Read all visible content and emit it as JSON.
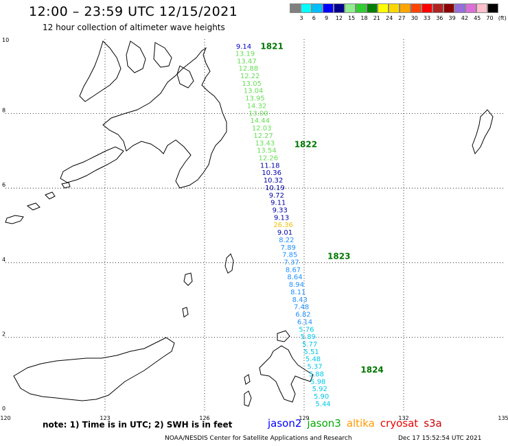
{
  "header": {
    "title": "12:00 – 23:59 UTC 12/15/2021",
    "subtitle": "12 hour collection of altimeter wave heights"
  },
  "colorbar": {
    "colors": [
      "#808080",
      "#00ffff",
      "#00bfff",
      "#0000ff",
      "#00008b",
      "#90ee90",
      "#32cd32",
      "#008000",
      "#ffff00",
      "#ffd700",
      "#ffa500",
      "#ff4500",
      "#ff0000",
      "#b22222",
      "#8b0000",
      "#9370db",
      "#da70d6",
      "#ffc0cb",
      "#000000"
    ],
    "labels": [
      "3",
      "6",
      "9",
      "12",
      "15",
      "18",
      "21",
      "24",
      "27",
      "30",
      "33",
      "36",
      "39",
      "42",
      "45",
      "70",
      "(ft)"
    ]
  },
  "chart_data": {
    "type": "scatter",
    "xlim": [
      120,
      135
    ],
    "ylim": [
      0,
      10
    ],
    "x_ticks": [
      120,
      123,
      126,
      129,
      132,
      135
    ],
    "y_ticks": [
      0,
      2,
      4,
      6,
      8,
      10
    ],
    "grid": true,
    "points": [
      {
        "lon": 127.18,
        "lat": 9.74,
        "value": "9.14",
        "color": "#0000cc"
      },
      {
        "lon": 127.22,
        "lat": 9.55,
        "value": "13.19",
        "color": "#66dd55"
      },
      {
        "lon": 127.27,
        "lat": 9.35,
        "value": "13.47",
        "color": "#66dd55"
      },
      {
        "lon": 127.32,
        "lat": 9.15,
        "value": "12.88",
        "color": "#66dd55"
      },
      {
        "lon": 127.37,
        "lat": 8.95,
        "value": "12.22",
        "color": "#66dd55"
      },
      {
        "lon": 127.42,
        "lat": 8.75,
        "value": "13.05",
        "color": "#66dd55"
      },
      {
        "lon": 127.47,
        "lat": 8.55,
        "value": "13.04",
        "color": "#66dd55"
      },
      {
        "lon": 127.52,
        "lat": 8.35,
        "value": "13.95",
        "color": "#66dd55"
      },
      {
        "lon": 127.57,
        "lat": 8.15,
        "value": "14.32",
        "color": "#66dd55"
      },
      {
        "lon": 127.62,
        "lat": 7.95,
        "value": "13.00",
        "color": "#66dd55"
      },
      {
        "lon": 127.67,
        "lat": 7.75,
        "value": "14.44",
        "color": "#66dd55"
      },
      {
        "lon": 127.72,
        "lat": 7.55,
        "value": "12.03",
        "color": "#66dd55"
      },
      {
        "lon": 127.77,
        "lat": 7.35,
        "value": "12.27",
        "color": "#66dd55"
      },
      {
        "lon": 127.82,
        "lat": 7.15,
        "value": "13.43",
        "color": "#66dd55"
      },
      {
        "lon": 127.87,
        "lat": 6.95,
        "value": "13.54",
        "color": "#66dd55"
      },
      {
        "lon": 127.92,
        "lat": 6.75,
        "value": "12.26",
        "color": "#66dd55"
      },
      {
        "lon": 127.97,
        "lat": 6.55,
        "value": "11.18",
        "color": "#0000aa"
      },
      {
        "lon": 128.02,
        "lat": 6.35,
        "value": "10.36",
        "color": "#0000aa"
      },
      {
        "lon": 128.07,
        "lat": 6.15,
        "value": "10.32",
        "color": "#0000aa"
      },
      {
        "lon": 128.12,
        "lat": 5.95,
        "value": "10.19",
        "color": "#0000aa"
      },
      {
        "lon": 128.17,
        "lat": 5.75,
        "value": "9.72",
        "color": "#0000aa"
      },
      {
        "lon": 128.22,
        "lat": 5.55,
        "value": "9.11",
        "color": "#0000aa"
      },
      {
        "lon": 128.27,
        "lat": 5.35,
        "value": "9.33",
        "color": "#0000aa"
      },
      {
        "lon": 128.32,
        "lat": 5.15,
        "value": "9.13",
        "color": "#0000aa"
      },
      {
        "lon": 128.37,
        "lat": 4.95,
        "value": "26.36",
        "color": "#f0c000"
      },
      {
        "lon": 128.42,
        "lat": 4.75,
        "value": "9.01",
        "color": "#0000aa"
      },
      {
        "lon": 128.47,
        "lat": 4.55,
        "value": "8.22",
        "color": "#1e90ff"
      },
      {
        "lon": 128.52,
        "lat": 4.35,
        "value": "7.89",
        "color": "#1e90ff"
      },
      {
        "lon": 128.57,
        "lat": 4.15,
        "value": "7.85",
        "color": "#1e90ff"
      },
      {
        "lon": 128.62,
        "lat": 3.95,
        "value": "7.37",
        "color": "#1e90ff"
      },
      {
        "lon": 128.67,
        "lat": 3.75,
        "value": "8.67",
        "color": "#1e90ff"
      },
      {
        "lon": 128.72,
        "lat": 3.55,
        "value": "8.64",
        "color": "#1e90ff"
      },
      {
        "lon": 128.77,
        "lat": 3.35,
        "value": "8.94",
        "color": "#1e90ff"
      },
      {
        "lon": 128.82,
        "lat": 3.15,
        "value": "8.11",
        "color": "#1e90ff"
      },
      {
        "lon": 128.87,
        "lat": 2.95,
        "value": "8.43",
        "color": "#1e90ff"
      },
      {
        "lon": 128.92,
        "lat": 2.75,
        "value": "7.48",
        "color": "#1e90ff"
      },
      {
        "lon": 128.97,
        "lat": 2.55,
        "value": "6.82",
        "color": "#1e90ff"
      },
      {
        "lon": 129.02,
        "lat": 2.35,
        "value": "6.14",
        "color": "#1e90ff"
      },
      {
        "lon": 129.07,
        "lat": 2.15,
        "value": "5.76",
        "color": "#00c8e8"
      },
      {
        "lon": 129.12,
        "lat": 1.95,
        "value": "5.89",
        "color": "#00c8e8"
      },
      {
        "lon": 129.17,
        "lat": 1.75,
        "value": "5.77",
        "color": "#00c8e8"
      },
      {
        "lon": 129.22,
        "lat": 1.55,
        "value": "5.51",
        "color": "#00c8e8"
      },
      {
        "lon": 129.27,
        "lat": 1.35,
        "value": "5.48",
        "color": "#00c8e8"
      },
      {
        "lon": 129.32,
        "lat": 1.15,
        "value": "5.37",
        "color": "#00c8e8"
      },
      {
        "lon": 129.37,
        "lat": 0.95,
        "value": "5.88",
        "color": "#00c8e8"
      },
      {
        "lon": 129.42,
        "lat": 0.75,
        "value": "5.98",
        "color": "#00c8e8"
      },
      {
        "lon": 129.47,
        "lat": 0.55,
        "value": "5.92",
        "color": "#00c8e8"
      },
      {
        "lon": 129.52,
        "lat": 0.35,
        "value": "5.90",
        "color": "#00c8e8"
      },
      {
        "lon": 129.57,
        "lat": 0.15,
        "value": "5.44",
        "color": "#00c8e8"
      }
    ],
    "pass_labels": [
      {
        "lon": 128.03,
        "lat": 9.73,
        "text": "1821"
      },
      {
        "lon": 129.05,
        "lat": 7.1,
        "text": "1822"
      },
      {
        "lon": 130.05,
        "lat": 4.1,
        "text": "1823"
      },
      {
        "lon": 131.05,
        "lat": 1.05,
        "text": "1824"
      }
    ]
  },
  "footer": {
    "note": "note:  1) Time is in UTC; 2) SWH is in feet",
    "credit": "NOAA/NESDIS Center for Satellite Applications and Research",
    "timestamp": "Dec 17 15:52:54 UTC 2021"
  },
  "satellites": [
    {
      "name": "jason2",
      "color": "#0000ff"
    },
    {
      "name": "jason3",
      "color": "#00aa00"
    },
    {
      "name": "altika",
      "color": "#ff9900"
    },
    {
      "name": "cryosat",
      "color": "#ee0000"
    },
    {
      "name": "s3a",
      "color": "#cc0000"
    }
  ]
}
